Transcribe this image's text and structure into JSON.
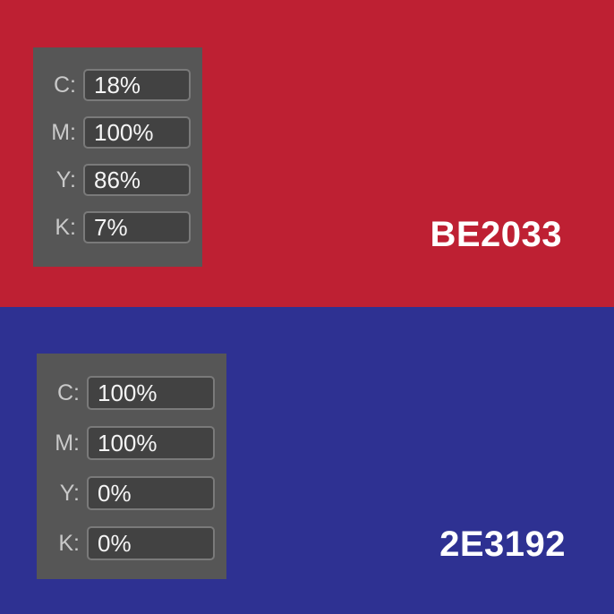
{
  "swatches": [
    {
      "name": "red",
      "hex_label": "BE2033",
      "color": "#BE2033",
      "cmyk_rows": [
        {
          "label": "C:",
          "value": "18%"
        },
        {
          "label": "M:",
          "value": "100%"
        },
        {
          "label": "Y:",
          "value": "86%"
        },
        {
          "label": "K:",
          "value": "7%"
        }
      ]
    },
    {
      "name": "blue",
      "hex_label": "2E3192",
      "color": "#2E3192",
      "cmyk_rows": [
        {
          "label": "C:",
          "value": "100%"
        },
        {
          "label": "M:",
          "value": "100%"
        },
        {
          "label": "Y:",
          "value": "0%"
        },
        {
          "label": "K:",
          "value": "0%"
        }
      ]
    }
  ],
  "theme": {
    "panel_background": "#565656",
    "field_background": "#424242",
    "field_border": "#7A7A7A",
    "label_color": "#C9C9C9",
    "value_color": "#F5F5F5",
    "hex_text_color": "#FFFFFF"
  }
}
